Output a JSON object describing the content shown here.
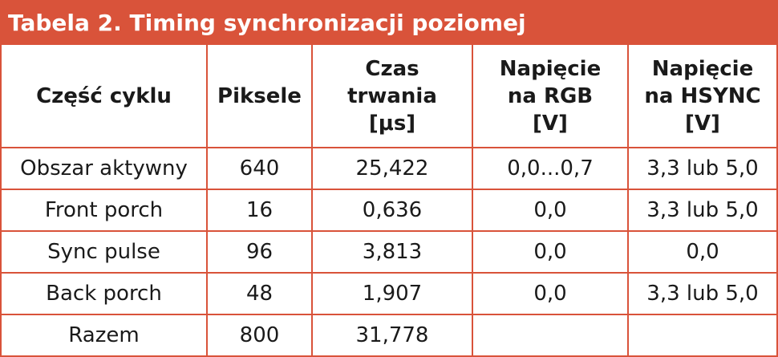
{
  "table": {
    "title": "Tabela 2. Timing synchronizacji poziomej",
    "headers": [
      {
        "lines": [
          "Część cyklu"
        ]
      },
      {
        "lines": [
          "Piksele"
        ]
      },
      {
        "lines": [
          "Czas",
          "trwania",
          "[μs]"
        ]
      },
      {
        "lines": [
          "Napięcie",
          "na RGB",
          "[V]"
        ]
      },
      {
        "lines": [
          "Napięcie",
          "na HSYNC",
          "[V]"
        ]
      }
    ],
    "rows": [
      [
        "Obszar aktywny",
        "640",
        "25,422",
        "0,0...0,7",
        "3,3 lub 5,0"
      ],
      [
        "Front porch",
        "16",
        "0,636",
        "0,0",
        "3,3 lub 5,0"
      ],
      [
        "Sync pulse",
        "96",
        "3,813",
        "0,0",
        "0,0"
      ],
      [
        "Back porch",
        "48",
        "1,907",
        "0,0",
        "3,3 lub 5,0"
      ],
      [
        "Razem",
        "800",
        "31,778",
        "",
        ""
      ]
    ]
  },
  "colors": {
    "accent": "#d9533a",
    "title_text": "#ffffff",
    "body_text": "#1a1a1a"
  }
}
